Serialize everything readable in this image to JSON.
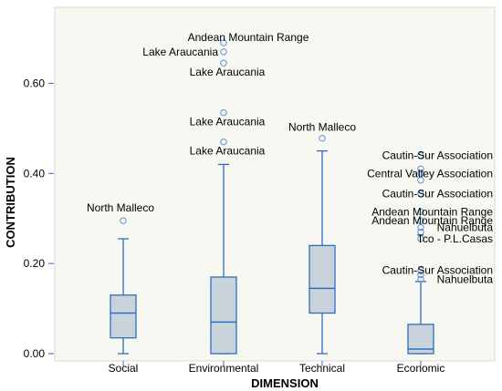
{
  "chart_data": {
    "type": "boxplot",
    "xlabel": "DIMENSION",
    "ylabel": "CONTRIBUTION",
    "ylim": [
      0.0,
      0.7
    ],
    "yticks": [
      0.0,
      0.2,
      0.4,
      0.6
    ],
    "ytick_labels": [
      "0.00",
      "0.20",
      "0.40",
      "0.60"
    ],
    "categories": [
      "Social",
      "Environmental",
      "Technical",
      "Economic"
    ],
    "grid": false,
    "colors": {
      "plot_background": "#f8f8f3",
      "box_fill": "#c8d3dc",
      "box_line": "#2f6ebf",
      "outlier": "#5b8fd6"
    },
    "boxes": [
      {
        "category": "Social",
        "min": 0.0,
        "q1": 0.035,
        "median": 0.09,
        "q3": 0.13,
        "max": 0.255,
        "outliers": [
          {
            "value": 0.295,
            "label": "North Malleco"
          }
        ]
      },
      {
        "category": "Environmental",
        "min": 0.0,
        "q1": 0.0,
        "median": 0.07,
        "q3": 0.17,
        "max": 0.42,
        "outliers": [
          {
            "value": 0.69,
            "label": "Andean Mountain Range"
          },
          {
            "value": 0.67,
            "label": "Lake Araucania"
          },
          {
            "value": 0.645,
            "label": "Lake Araucania"
          },
          {
            "value": 0.535,
            "label": "Lake Araucania"
          },
          {
            "value": 0.47,
            "label": "Lake Araucania"
          }
        ]
      },
      {
        "category": "Technical",
        "min": 0.0,
        "q1": 0.09,
        "median": 0.145,
        "q3": 0.24,
        "max": 0.45,
        "outliers": [
          {
            "value": 0.478,
            "label": "North Malleco"
          }
        ]
      },
      {
        "category": "Economic",
        "min": 0.0,
        "q1": 0.0,
        "median": 0.01,
        "q3": 0.065,
        "max": 0.16,
        "outliers": [
          {
            "value": 0.44,
            "label": "Cautin-Sur Association"
          },
          {
            "value": 0.41,
            "label": ""
          },
          {
            "value": 0.4,
            "label": "Central Valley Association"
          },
          {
            "value": 0.385,
            "label": ""
          },
          {
            "value": 0.355,
            "label": "Cautin-Sur Association"
          },
          {
            "value": 0.315,
            "label": "Andean Mountain Range"
          },
          {
            "value": 0.295,
            "label": "Andean Mountain Range"
          },
          {
            "value": 0.28,
            "label": "Nahuelbuta"
          },
          {
            "value": 0.27,
            "label": ""
          },
          {
            "value": 0.255,
            "label": "Tco - P.L.Casas"
          },
          {
            "value": 0.185,
            "label": "Cautin-Sur Association"
          },
          {
            "value": 0.175,
            "label": ""
          },
          {
            "value": 0.165,
            "label": "Nahuelbuta"
          }
        ]
      }
    ]
  }
}
